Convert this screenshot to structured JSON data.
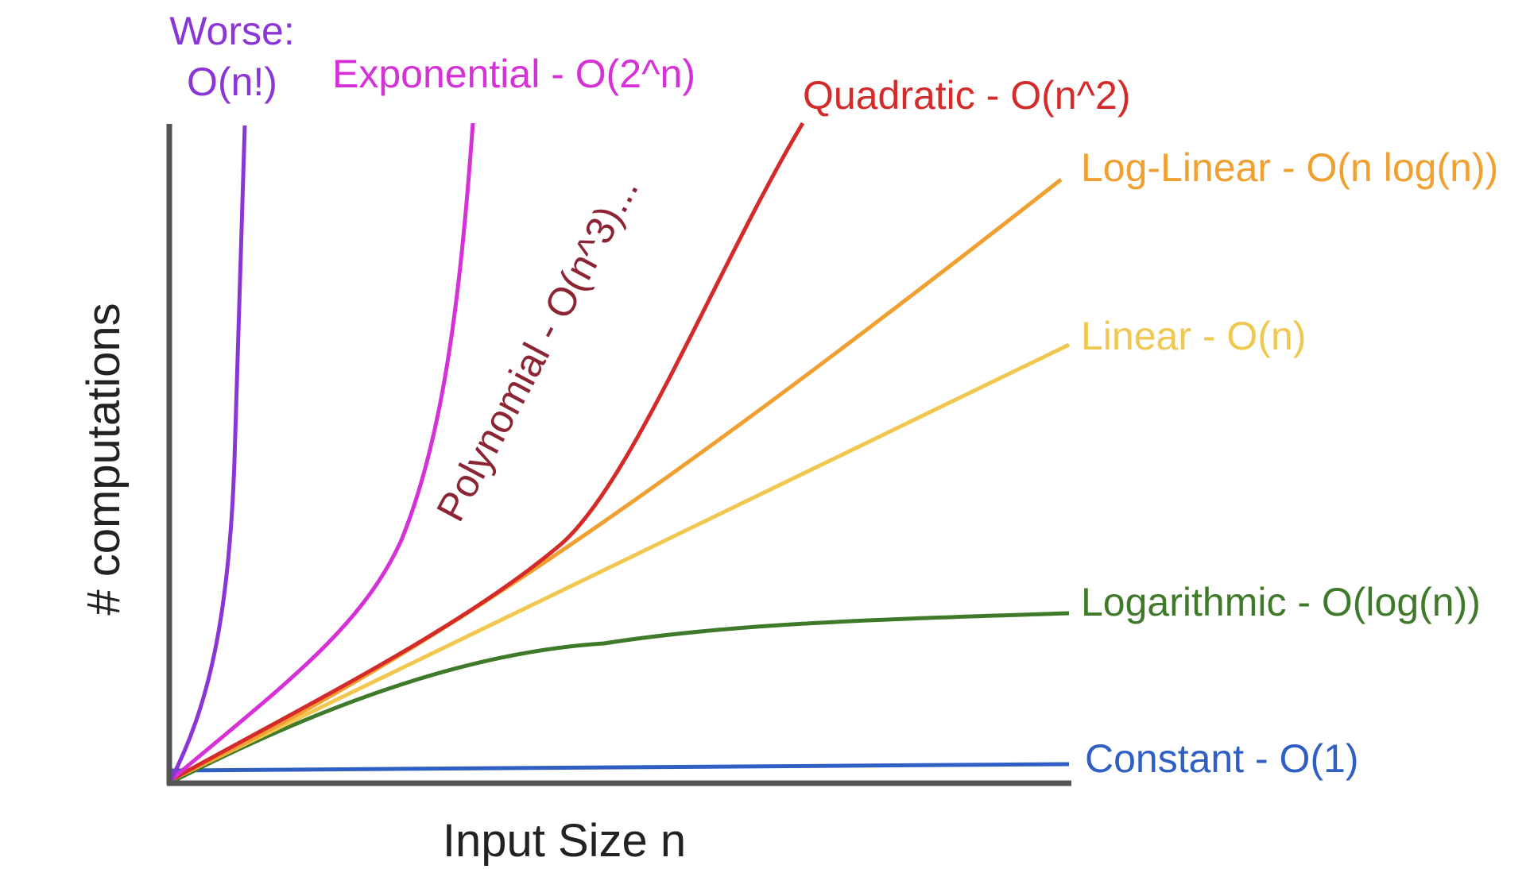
{
  "chart_data": {
    "type": "line",
    "title": "",
    "xlabel": "Input Size n",
    "ylabel": "# computations",
    "grid": false,
    "legend": "none",
    "axis_color": "#555555",
    "series": [
      {
        "name": "Constant - O(1)",
        "color": "#2f5fc2",
        "complexity": "1"
      },
      {
        "name": "Logarithmic - O(log(n))",
        "color": "#3e7a2a",
        "complexity": "log(n)"
      },
      {
        "name": "Linear - O(n)",
        "color": "#f0c850",
        "complexity": "n"
      },
      {
        "name": "Log-Linear - O(n log(n))",
        "color": "#f0a030",
        "complexity": "n log(n)"
      },
      {
        "name": "Quadratic - O(n^2)",
        "color": "#d42a2a",
        "complexity": "n^2"
      },
      {
        "name": "Polynomial - O(n^3)...",
        "color": "#8c2434",
        "complexity": "n^3"
      },
      {
        "name": "Exponential - O(2^n)",
        "color": "#d631d6",
        "complexity": "2^n"
      },
      {
        "name_lines": [
          "Worse:",
          "O(n!)"
        ],
        "color": "#8a35d6",
        "complexity": "n!"
      }
    ]
  }
}
